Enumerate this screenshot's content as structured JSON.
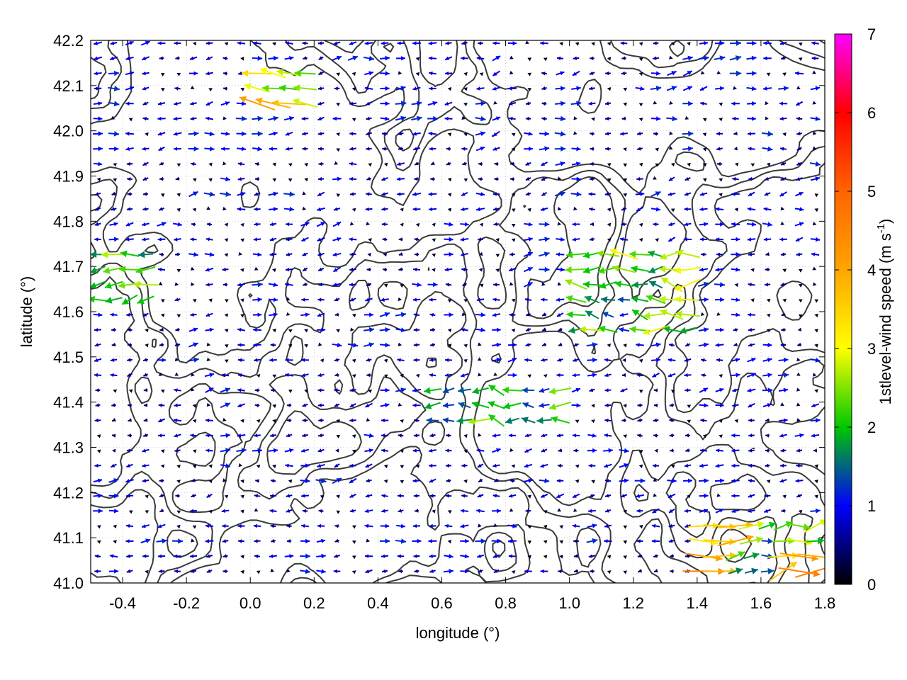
{
  "chart_data": {
    "type": "vector-field",
    "title": "",
    "xlabel": "longitude (°)",
    "ylabel": "latitude (°)",
    "xlim": [
      -0.5,
      1.8
    ],
    "ylim": [
      41.0,
      42.2
    ],
    "xticks": [
      -0.4,
      -0.2,
      0.0,
      0.2,
      0.4,
      0.6,
      0.8,
      1.0,
      1.2,
      1.4,
      1.6,
      1.8
    ],
    "xtick_labels": [
      "-0.4",
      "-0.2",
      "0.0",
      "0.2",
      "0.4",
      "0.6",
      "0.8",
      "1.0",
      "1.2",
      "1.4",
      "1.6",
      "1.8"
    ],
    "yticks": [
      41.0,
      41.1,
      41.2,
      41.3,
      41.4,
      41.5,
      41.6,
      41.7,
      41.8,
      41.9,
      42.0,
      42.1,
      42.2
    ],
    "ytick_labels": [
      "41.0",
      "41.1",
      "41.2",
      "41.3",
      "41.4",
      "41.5",
      "41.6",
      "41.7",
      "41.8",
      "41.9",
      "42.0",
      "42.1",
      "42.2"
    ],
    "grid": true,
    "colorbar": {
      "label": "1stlevel-wind speed (m s",
      "label_superscript": "-1",
      "label_suffix": ")",
      "range": [
        0,
        7
      ],
      "ticks": [
        0,
        1,
        2,
        3,
        4,
        5,
        6,
        7
      ],
      "tick_labels": [
        "0",
        "1",
        "2",
        "3",
        "4",
        "5",
        "6",
        "7"
      ],
      "colormap_stops": [
        {
          "value": 0,
          "color": "#000000"
        },
        {
          "value": 1,
          "color": "#0000ff"
        },
        {
          "value": 2,
          "color": "#00c800"
        },
        {
          "value": 3,
          "color": "#ffff00"
        },
        {
          "value": 4,
          "color": "#ffa500"
        },
        {
          "value": 5,
          "color": "#ff6400"
        },
        {
          "value": 6,
          "color": "#ff0000"
        },
        {
          "value": 7,
          "color": "#ff00ff"
        }
      ]
    },
    "vector_regions": [
      {
        "lon": [
          -0.5,
          -0.3
        ],
        "lat": [
          41.6,
          41.75
        ],
        "speed": 2.0,
        "direction_deg": 180
      },
      {
        "lon": [
          0.0,
          0.2
        ],
        "lat": [
          42.05,
          42.15
        ],
        "speed": 3.5,
        "direction_deg": 180
      },
      {
        "lon": [
          1.0,
          1.4
        ],
        "lat": [
          41.55,
          41.75
        ],
        "speed": 2.4,
        "direction_deg": 175
      },
      {
        "lon": [
          0.55,
          1.0
        ],
        "lat": [
          41.33,
          41.45
        ],
        "speed": 2.2,
        "direction_deg": 175
      },
      {
        "lon": [
          1.4,
          1.8
        ],
        "lat": [
          41.0,
          41.15
        ],
        "speed": 3.5,
        "direction_deg": 10
      },
      {
        "lon": [
          -0.5,
          1.8
        ],
        "lat": [
          41.0,
          42.2
        ],
        "speed": 0.9,
        "direction_deg": 180
      }
    ],
    "contour_level_count": 3
  }
}
